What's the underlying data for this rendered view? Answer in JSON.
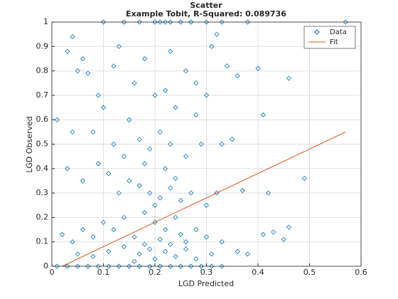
{
  "chart_data": {
    "type": "scatter",
    "title": "Scatter",
    "subtitle": "Example Tobit, R-Squared: 0.089736",
    "x_label": "LGD Predicted",
    "y_label": "LGD Observed",
    "xlim": [
      0,
      0.6
    ],
    "ylim": [
      0,
      1
    ],
    "xticks": [
      0,
      0.1,
      0.2,
      0.3,
      0.4,
      0.5,
      0.6
    ],
    "yticks": [
      0,
      0.1,
      0.2,
      0.3,
      0.4,
      0.5,
      0.6,
      0.7,
      0.8,
      0.9,
      1
    ],
    "grid": true,
    "legend": "northeast",
    "series": [
      {
        "name": "Data",
        "color": "#0072bd",
        "marker": "diamond",
        "x": [
          0.1,
          0.14,
          0.17,
          0.2,
          0.21,
          0.22,
          0.23,
          0.25,
          0.27,
          0.3,
          0.33,
          0.38,
          0.57,
          0.01,
          0.03,
          0.05,
          0.07,
          0.09,
          0.11,
          0.13,
          0.15,
          0.17,
          0.19,
          0.21,
          0.23,
          0.25,
          0.27,
          0.29,
          0.31,
          0.33,
          0.04,
          0.03,
          0.05,
          0.07,
          0.06,
          0.09,
          0.1,
          0.12,
          0.13,
          0.15,
          0.16,
          0.18,
          0.2,
          0.22,
          0.23,
          0.24,
          0.26,
          0.28,
          0.3,
          0.31,
          0.32,
          0.34,
          0.36,
          0.4,
          0.41,
          0.46,
          0.01,
          0.04,
          0.08,
          0.12,
          0.14,
          0.17,
          0.19,
          0.21,
          0.23,
          0.26,
          0.29,
          0.33,
          0.35,
          0.03,
          0.06,
          0.09,
          0.11,
          0.13,
          0.15,
          0.17,
          0.19,
          0.21,
          0.23,
          0.25,
          0.27,
          0.3,
          0.32,
          0.37,
          0.42,
          0.49,
          0.02,
          0.04,
          0.06,
          0.08,
          0.1,
          0.12,
          0.14,
          0.16,
          0.18,
          0.2,
          0.22,
          0.24,
          0.26,
          0.28,
          0.3,
          0.33,
          0.36,
          0.38,
          0.41,
          0.43,
          0.46,
          0.45,
          0.05,
          0.08,
          0.11,
          0.14,
          0.17,
          0.19,
          0.2,
          0.22,
          0.24,
          0.26,
          0.28,
          0.31,
          0.16,
          0.18,
          0.21,
          0.23,
          0.25,
          0.2,
          0.22,
          0.18,
          0.24,
          0.28
        ],
        "values": [
          1,
          1,
          1,
          1,
          1,
          1,
          1,
          1,
          1,
          1,
          1,
          1,
          1,
          0,
          0,
          0,
          0,
          0,
          0,
          0,
          0,
          0,
          0,
          0,
          0,
          0,
          0,
          0,
          0,
          0,
          0.94,
          0.88,
          0.8,
          0.79,
          0.85,
          0.7,
          0.65,
          0.82,
          0.9,
          0.6,
          0.75,
          0.85,
          0.7,
          0.72,
          0.88,
          0.65,
          0.8,
          0.75,
          0.7,
          0.9,
          0.95,
          0.82,
          0.78,
          0.81,
          0.62,
          0.77,
          0.6,
          0.55,
          0.55,
          0.5,
          0.45,
          0.52,
          0.48,
          0.55,
          0.5,
          0.45,
          0.5,
          0.5,
          0.52,
          0.4,
          0.35,
          0.42,
          0.38,
          0.3,
          0.35,
          0.33,
          0.3,
          0.28,
          0.32,
          0.27,
          0.3,
          0.25,
          0.3,
          0.31,
          0.3,
          0.36,
          0.13,
          0.1,
          0.15,
          0.12,
          0.18,
          0.15,
          0.2,
          0.12,
          0.22,
          0.18,
          0.15,
          0.2,
          0.1,
          0.15,
          0.12,
          0.1,
          0.06,
          0.05,
          0.13,
          0.14,
          0.16,
          0.11,
          0.05,
          0.04,
          0.06,
          0.08,
          0.05,
          0.07,
          0.03,
          0.06,
          0.04,
          0.07,
          0.03,
          0.05,
          0.02,
          0.09,
          0.11,
          0.09,
          0.13,
          0.25,
          0.4,
          0.42,
          0.36,
          0.62
        ]
      },
      {
        "name": "Fit",
        "color": "#d95319",
        "marker": "line",
        "x": [
          0.02,
          0.57
        ],
        "values": [
          0,
          0.55
        ]
      }
    ]
  }
}
